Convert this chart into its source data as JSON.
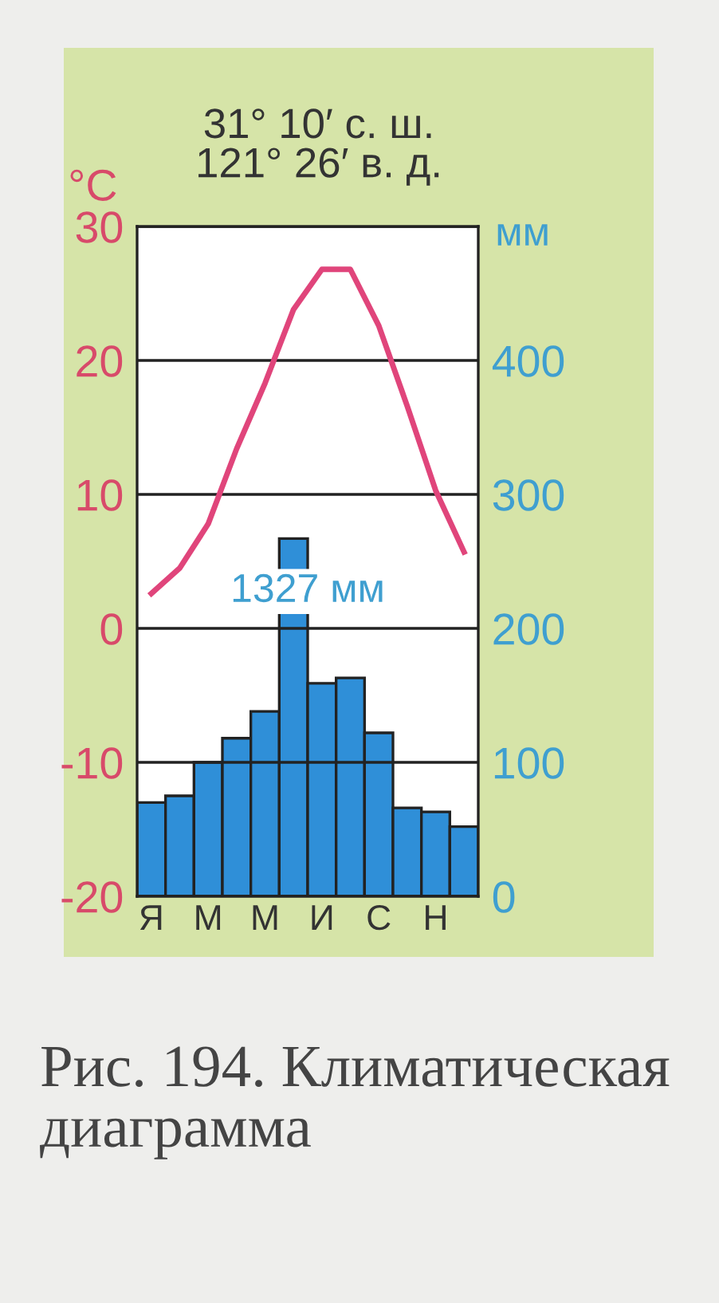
{
  "chart_data": {
    "type": "line",
    "title": "31° 10′ с. ш.\n121° 26′ в. д.",
    "ylabel": "°C",
    "y2label": "мм",
    "categories": [
      "Я",
      null,
      "М",
      null,
      "М",
      null,
      "И",
      null,
      "С",
      null,
      "Н",
      null
    ],
    "series": [
      {
        "type": "bar",
        "axis": "y2",
        "color": "#2f8fd8",
        "values": [
          70,
          75,
          100,
          118,
          138,
          267,
          159,
          163,
          122,
          66,
          63,
          52
        ]
      },
      {
        "color": "#e0457b",
        "values": [
          2.6,
          4.5,
          7.8,
          13.4,
          18.3,
          23.8,
          26.8,
          26.8,
          22.6,
          16.6,
          10.3,
          5.7
        ]
      }
    ],
    "ylim": [
      -20,
      30
    ],
    "yticks": [
      -20,
      -10,
      0,
      10,
      20,
      30
    ],
    "y2lim": [
      0,
      500
    ],
    "y2ticks": [
      0,
      100,
      200,
      300,
      400
    ],
    "grid": "y",
    "marker": "none",
    "line_style": "solid",
    "annotations": [
      "1327 мм",
      "Рис. 194. Климатическая диаграмма"
    ]
  }
}
